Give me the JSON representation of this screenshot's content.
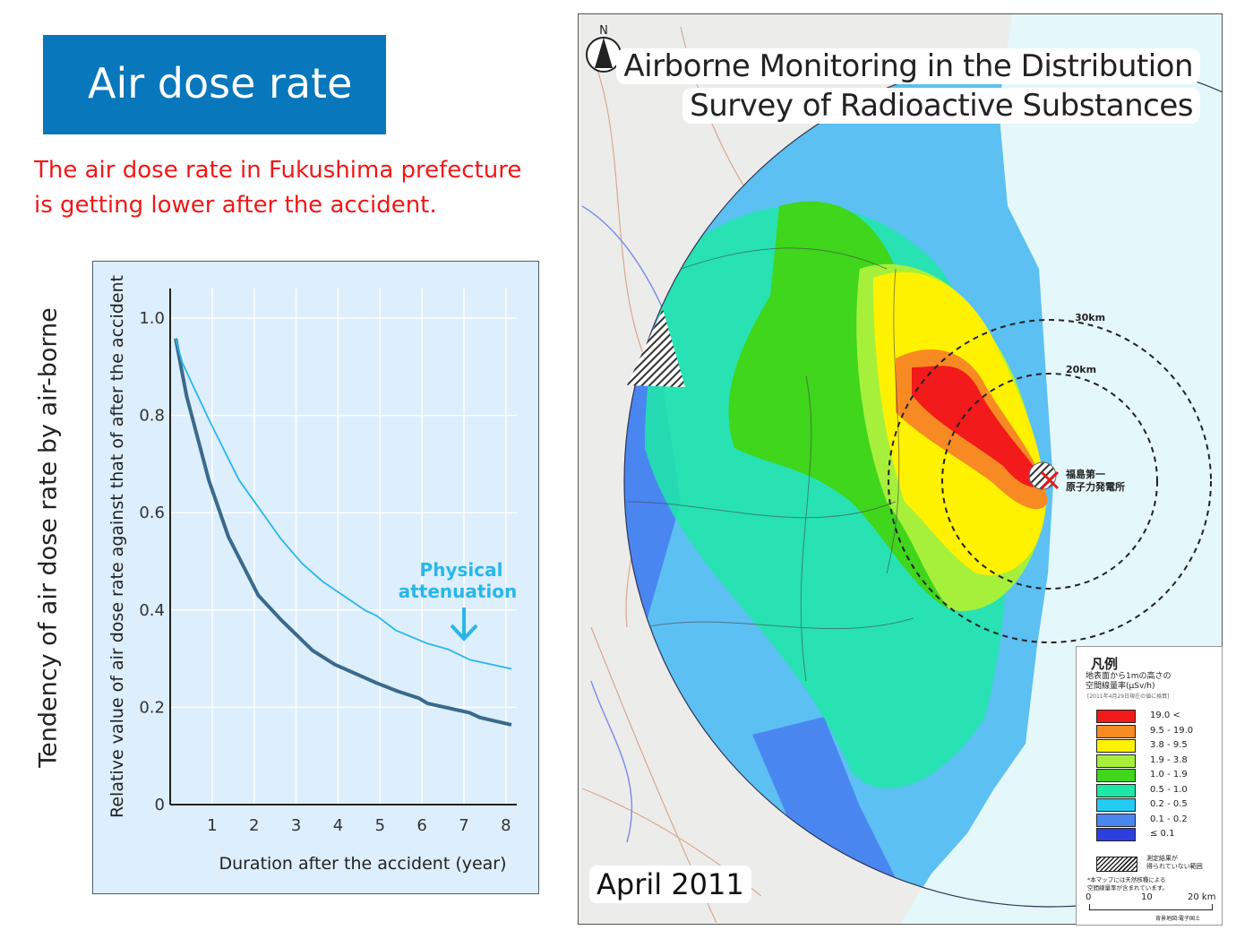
{
  "header": {
    "title": "Air dose rate",
    "subtitle_line1": "The air dose rate in Fukushima prefecture",
    "subtitle_line2": "is getting lower after the accident.",
    "side_label": "Tendency of air dose rate by air-borne",
    "colors": {
      "title_bg": "#0877bb",
      "subtitle": "#f01818"
    }
  },
  "chart_data": {
    "type": "line",
    "xlabel": "Duration after the accident (year)",
    "ylabel": "Relative value of air dose rate against that of after the accident",
    "xlim": [
      0,
      8.3
    ],
    "ylim": [
      0,
      1.05
    ],
    "x_ticks": [
      "1",
      "2",
      "3",
      "4",
      "5",
      "6",
      "7",
      "8"
    ],
    "y_ticks": [
      "0",
      "0.2",
      "0.4",
      "0.6",
      "0.8",
      "1.0"
    ],
    "grid": true,
    "annotation": {
      "line1": "Physical",
      "line2": "attenuation",
      "arrow_x": 7
    },
    "series": [
      {
        "color": "#3a6a8c",
        "points": [
          [
            0.13,
            0.958
          ],
          [
            0.39,
            0.84
          ],
          [
            0.92,
            0.667
          ],
          [
            1.39,
            0.55
          ],
          [
            2.1,
            0.43
          ],
          [
            2.64,
            0.38
          ],
          [
            3.39,
            0.317
          ],
          [
            3.92,
            0.288
          ],
          [
            4.92,
            0.25
          ],
          [
            5.42,
            0.233
          ],
          [
            5.92,
            0.219
          ],
          [
            6.13,
            0.208
          ],
          [
            7.13,
            0.189
          ],
          [
            7.38,
            0.179
          ],
          [
            8.13,
            0.164
          ]
        ]
      },
      {
        "name": "Physical attenuation",
        "color": "#29b6ea",
        "points": [
          [
            0.13,
            0.958
          ],
          [
            0.29,
            0.908
          ],
          [
            0.93,
            0.79
          ],
          [
            1.64,
            0.667
          ],
          [
            2.64,
            0.546
          ],
          [
            3.14,
            0.496
          ],
          [
            3.64,
            0.458
          ],
          [
            4.63,
            0.4
          ],
          [
            4.92,
            0.388
          ],
          [
            5.38,
            0.358
          ],
          [
            6.13,
            0.331
          ],
          [
            6.63,
            0.319
          ],
          [
            7.13,
            0.298
          ],
          [
            8.13,
            0.279
          ]
        ]
      }
    ]
  },
  "map": {
    "title_line1": "Airborne Monitoring in the Distribution",
    "title_line2": "Survey of Radioactive Substances",
    "date_label": "April 2011",
    "north_label": "N",
    "ring_30": "30km",
    "ring_20": "20km",
    "plant_label_line1": "福島第一",
    "plant_label_line2": "原子力発電所",
    "legend": {
      "title": "凡例",
      "subtitle_line1": "地表面から1mの高さの",
      "subtitle_line2": "空間線量率(μSv/h)",
      "note": "[2011年4月29日現在の値に換算]",
      "items": [
        {
          "label": "19.0 <",
          "color": "#f21a1a"
        },
        {
          "label": "9.5 - 19.0",
          "color": "#f78a22"
        },
        {
          "label": "3.8 - 9.5",
          "color": "#fff200"
        },
        {
          "label": "1.9 - 3.8",
          "color": "#a6f03c"
        },
        {
          "label": "1.0 - 1.9",
          "color": "#3fd61c"
        },
        {
          "label": "0.5 - 1.0",
          "color": "#1ee8a8"
        },
        {
          "label": "0.2 - 0.5",
          "color": "#22ccf2"
        },
        {
          "label": "0.1 - 0.2",
          "color": "#4a86f0"
        },
        {
          "label": "≤ 0.1",
          "color": "#2e3fe0"
        }
      ],
      "hatch_label_line1": "測定結果が",
      "hatch_label_line2": "得られていない範囲",
      "footnote_line1": "*本マップには天然核種による",
      "footnote_line2": "空間線量率が含まれています。",
      "scale": [
        "0",
        "10",
        "20 km"
      ],
      "credit": "背景地図:電子国土"
    }
  }
}
